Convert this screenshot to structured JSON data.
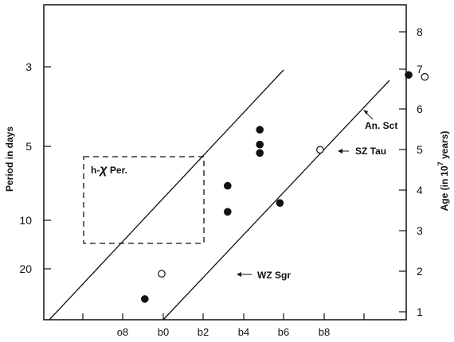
{
  "chart_data": {
    "type": "scatter",
    "title": "",
    "ylabel_left": "Period in days",
    "ylabel_right_pre": "Age (in",
    "ylabel_right_base": "10",
    "ylabel_right_exp": "7",
    "ylabel_right_post": " years)",
    "left_ticks": [
      "3",
      "5",
      "10",
      "20"
    ],
    "right_ticks": [
      "8",
      "7",
      "6",
      "5",
      "4",
      "3",
      "2",
      "1"
    ],
    "bottom_ticks": [
      "o8",
      "b0",
      "b2",
      "b4",
      "b6",
      "b8"
    ],
    "annotations": {
      "box_label_pre": "h-",
      "box_label_chi": "χ",
      "box_label_post": " Per.",
      "an_sct": "An. Sct",
      "sz_tau": "SZ Tau",
      "wz_sgr": "WZ Sgr"
    },
    "series": [
      {
        "marker": "filled",
        "points": [
          [
            -0.23,
            1.32
          ],
          [
            0.8,
            3.5
          ],
          [
            0.8,
            4.15
          ],
          [
            1.2,
            4.97
          ],
          [
            1.2,
            5.18
          ],
          [
            1.2,
            5.55
          ],
          [
            1.45,
            3.72
          ],
          [
            3.05,
            6.92
          ]
        ]
      },
      {
        "marker": "open",
        "points": [
          [
            -0.02,
            1.95
          ],
          [
            1.95,
            5.05
          ],
          [
            3.25,
            6.87
          ]
        ]
      }
    ]
  }
}
